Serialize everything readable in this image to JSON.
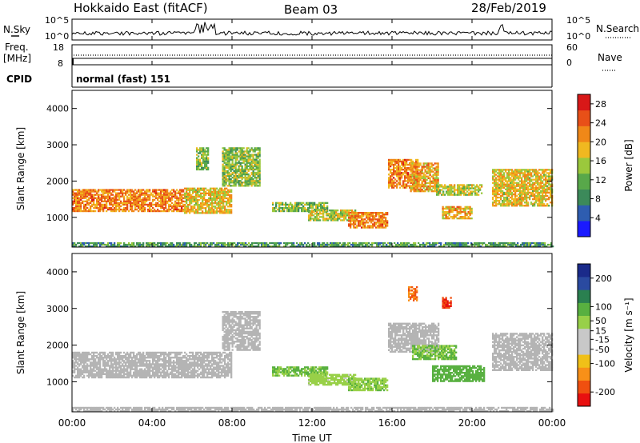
{
  "header": {
    "station": "Hokkaido East (fitACF)",
    "beam": "Beam 03",
    "date": "28/Feb/2019"
  },
  "strip_labels": {
    "nsky": "N.Sky",
    "nsearch": "N.Search",
    "freq_line1": "Freq.",
    "freq_line2": "[MHz]",
    "nave": "Nave",
    "cpid": "CPID",
    "noise_ticks_left": [
      "10^5",
      "10^0"
    ],
    "noise_ticks_right": [
      "10^5",
      "10^0"
    ],
    "freq_ticks_left": [
      "18",
      "8"
    ],
    "nave_ticks_right": [
      "60",
      "0"
    ],
    "cpid_text": "normal (fast) 151"
  },
  "colors": {
    "power": [
      "#1a1aff",
      "#2e5db0",
      "#3c8a5a",
      "#58a84a",
      "#9bc83c",
      "#f0b820",
      "#f08818",
      "#e85018",
      "#d81818"
    ],
    "velocity": [
      "#e81010",
      "#f05010",
      "#f89018",
      "#f0c018",
      "#c8c8c8",
      "#c8c8c8",
      "#98d048",
      "#58b040",
      "#2a8050",
      "#2a4aa0",
      "#1a2a8a"
    ],
    "ground_scatter": "#b4b4b4"
  },
  "chart_data": [
    {
      "type": "heatmap",
      "name": "power",
      "ylabel": "Slant Range [km]",
      "xlabel": "",
      "xlim_hours": [
        0,
        24
      ],
      "ylim_km": [
        180,
        4500
      ],
      "xticks": [
        "00:00",
        "04:00",
        "08:00",
        "12:00",
        "16:00",
        "20:00",
        "00:00"
      ],
      "yticks": [
        1000,
        2000,
        3000,
        4000
      ],
      "colorbar": {
        "label": "Power [dB]",
        "ticks": [
          4,
          8,
          12,
          16,
          20,
          24,
          28
        ],
        "range": [
          0,
          30
        ]
      },
      "echo_regions": [
        {
          "t0": 0.0,
          "t1": 5.6,
          "r0": 1150,
          "r1": 1750,
          "value": 22
        },
        {
          "t0": 5.6,
          "t1": 8.0,
          "r0": 1100,
          "r1": 1800,
          "value": 18
        },
        {
          "t0": 7.5,
          "t1": 9.4,
          "r0": 1850,
          "r1": 2900,
          "value": 14
        },
        {
          "t0": 6.2,
          "t1": 6.8,
          "r0": 2300,
          "r1": 2900,
          "value": 14
        },
        {
          "t0": 10.0,
          "t1": 12.8,
          "r0": 1150,
          "r1": 1400,
          "value": 13
        },
        {
          "t0": 11.8,
          "t1": 14.2,
          "r0": 900,
          "r1": 1200,
          "value": 16
        },
        {
          "t0": 13.8,
          "t1": 15.8,
          "r0": 700,
          "r1": 1150,
          "value": 22
        },
        {
          "t0": 15.8,
          "t1": 17.3,
          "r0": 1800,
          "r1": 2600,
          "value": 22
        },
        {
          "t0": 16.9,
          "t1": 18.3,
          "r0": 1700,
          "r1": 2500,
          "value": 20
        },
        {
          "t0": 18.2,
          "t1": 20.5,
          "r0": 1600,
          "r1": 1900,
          "value": 16
        },
        {
          "t0": 18.5,
          "t1": 20.0,
          "r0": 950,
          "r1": 1300,
          "value": 20
        },
        {
          "t0": 21.0,
          "t1": 24.0,
          "r0": 1300,
          "r1": 2300,
          "value": 18
        },
        {
          "t0": 0.0,
          "t1": 24.0,
          "r0": 180,
          "r1": 300,
          "value": 10
        }
      ]
    },
    {
      "type": "heatmap",
      "name": "velocity",
      "ylabel": "Slant Range [km]",
      "xlabel": "Time UT",
      "xlim_hours": [
        0,
        24
      ],
      "ylim_km": [
        180,
        4500
      ],
      "xticks": [
        "00:00",
        "04:00",
        "08:00",
        "12:00",
        "16:00",
        "20:00",
        "00:00"
      ],
      "yticks": [
        1000,
        2000,
        3000,
        4000
      ],
      "colorbar": {
        "label": "Velocity [m s⁻¹]",
        "ticks": [
          200,
          100,
          50,
          15,
          -15,
          -50,
          -100,
          -200
        ],
        "range": [
          -250,
          250
        ]
      },
      "echo_regions": [
        {
          "t0": 0.0,
          "t1": 8.0,
          "r0": 1100,
          "r1": 1800,
          "value": 0,
          "ground_scatter": true
        },
        {
          "t0": 7.5,
          "t1": 9.4,
          "r0": 1850,
          "r1": 2900,
          "value": 0,
          "ground_scatter": true
        },
        {
          "t0": 10.0,
          "t1": 12.8,
          "r0": 1150,
          "r1": 1400,
          "value": 70
        },
        {
          "t0": 11.8,
          "t1": 14.2,
          "r0": 900,
          "r1": 1200,
          "value": 40
        },
        {
          "t0": 13.8,
          "t1": 15.8,
          "r0": 750,
          "r1": 1100,
          "value": 60
        },
        {
          "t0": 15.8,
          "t1": 18.3,
          "r0": 1800,
          "r1": 2600,
          "value": 0,
          "ground_scatter": true
        },
        {
          "t0": 17.0,
          "t1": 19.2,
          "r0": 1600,
          "r1": 2000,
          "value": 70
        },
        {
          "t0": 18.0,
          "t1": 20.6,
          "r0": 1000,
          "r1": 1450,
          "value": 90
        },
        {
          "t0": 16.8,
          "t1": 17.2,
          "r0": 3200,
          "r1": 3600,
          "value": -160
        },
        {
          "t0": 18.5,
          "t1": 18.9,
          "r0": 3000,
          "r1": 3300,
          "value": -200
        },
        {
          "t0": 21.0,
          "t1": 24.0,
          "r0": 1300,
          "r1": 2300,
          "value": 0,
          "ground_scatter": true
        },
        {
          "t0": 0.0,
          "t1": 24.0,
          "r0": 180,
          "r1": 300,
          "value": 0,
          "ground_scatter": true
        }
      ]
    }
  ]
}
